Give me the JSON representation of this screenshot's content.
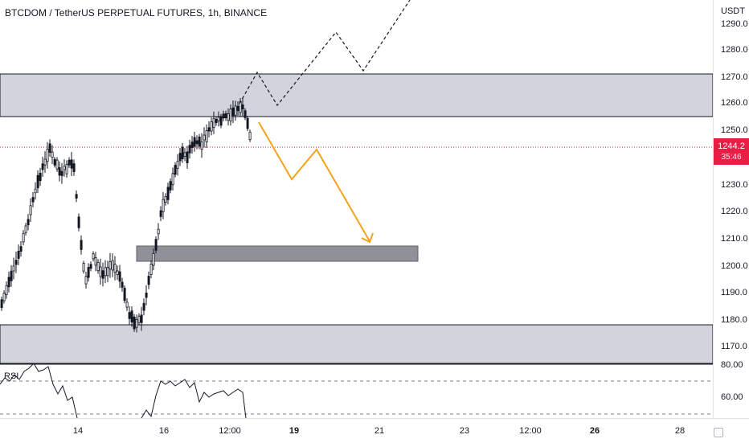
{
  "title": "BTCDOM / TetherUS PERPETUAL FUTURES, 1h, BINANCE",
  "price_axis": {
    "unit": "USDT",
    "ticks": [
      "1290.0",
      "1280.0",
      "1270.0",
      "1260.0",
      "1250.0",
      "1230.0",
      "1220.0",
      "1210.0",
      "1200.0",
      "1190.0",
      "1180.0",
      "1170.0"
    ],
    "last_price": "1244.2",
    "countdown": "35:46"
  },
  "time_axis": {
    "ticks": [
      "14",
      "16",
      "12:00",
      "19",
      "21",
      "23",
      "12:00",
      "26",
      "28"
    ],
    "bold": [
      false,
      false,
      false,
      true,
      false,
      false,
      false,
      true,
      false
    ]
  },
  "rsi": {
    "label": "RSI",
    "ticks": [
      "80.00",
      "60.00"
    ]
  },
  "colors": {
    "candle": "#131722",
    "zone_fill": "#d1d4dc",
    "zone_dark": "#8f9198",
    "arrow": "#f7a21b",
    "last_price_line": "#e91e45",
    "projection": "#131722"
  }
}
